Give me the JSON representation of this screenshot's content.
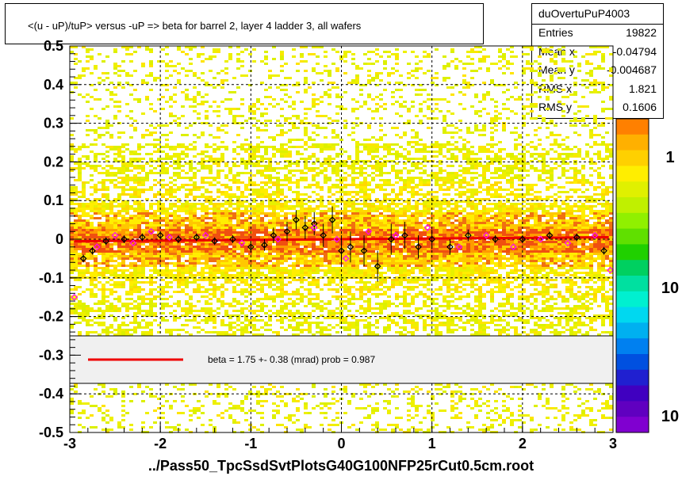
{
  "title": "<(u - uP)/tuP>  versus  -uP => beta for barrel 2, layer 4 ladder 3, all wafers",
  "stats": {
    "name": "duOvertuPuP4003",
    "rows": [
      {
        "label": "Entries",
        "value": "19822"
      },
      {
        "label": "Mean x",
        "value": "-0.04794"
      },
      {
        "label": "Mean y",
        "value": "-0.004687"
      },
      {
        "label": "RMS x",
        "value": "1.821"
      },
      {
        "label": "RMS y",
        "value": "0.1606"
      }
    ]
  },
  "fit_legend": "beta =    1.75 +-  0.38 (mrad) prob = 0.987",
  "footer": "../Pass50_TpcSsdSvtPlotsG40G100NFP25rCut0.5cm.root",
  "colors": {
    "fit_line": "#ee0000",
    "profile_black": "#000000",
    "profile_magenta": "#ff00ff"
  },
  "chart_data": {
    "type": "heatmap",
    "title": "<(u - uP)/tuP>  versus  -uP => beta for barrel 2, layer 4 ladder 3, all wafers",
    "xlim": [
      -3,
      3
    ],
    "ylim": [
      -0.5,
      0.5
    ],
    "x_ticks": [
      -3,
      -2,
      -1,
      0,
      1,
      2,
      3
    ],
    "x_tick_labels": [
      "-3",
      "-2",
      "-1",
      "0",
      "1",
      "2",
      "3"
    ],
    "y_ticks": [
      -0.5,
      -0.4,
      -0.3,
      -0.2,
      -0.1,
      0,
      0.1,
      0.2,
      0.3,
      0.4,
      0.5
    ],
    "y_tick_labels": [
      "-0.5",
      "-0.4",
      "-0.3",
      "-0.2",
      "-0.1",
      "0",
      "0.1",
      "0.2",
      "0.3",
      "0.4",
      "0.5"
    ],
    "grid": true,
    "colorbar_labels": [
      "1",
      "10",
      "10"
    ],
    "fit": {
      "slope_mrad": 1.75,
      "slope_err_mrad": 0.38,
      "prob": 0.987,
      "intercept": 0.0
    },
    "profile_black": [
      {
        "x": -2.85,
        "y": -0.05,
        "e": 0.01
      },
      {
        "x": -2.75,
        "y": -0.03,
        "e": 0.01
      },
      {
        "x": -2.6,
        "y": -0.005,
        "e": 0.01
      },
      {
        "x": -2.4,
        "y": 0.0,
        "e": 0.01
      },
      {
        "x": -2.2,
        "y": 0.005,
        "e": 0.01
      },
      {
        "x": -2.0,
        "y": 0.01,
        "e": 0.01
      },
      {
        "x": -1.8,
        "y": 0.0,
        "e": 0.01
      },
      {
        "x": -1.6,
        "y": 0.005,
        "e": 0.01
      },
      {
        "x": -1.4,
        "y": -0.005,
        "e": 0.01
      },
      {
        "x": -1.2,
        "y": 0.0,
        "e": 0.01
      },
      {
        "x": -1.0,
        "y": -0.02,
        "e": 0.015
      },
      {
        "x": -0.85,
        "y": -0.015,
        "e": 0.015
      },
      {
        "x": -0.75,
        "y": 0.01,
        "e": 0.02
      },
      {
        "x": -0.6,
        "y": 0.02,
        "e": 0.025
      },
      {
        "x": -0.5,
        "y": 0.05,
        "e": 0.025
      },
      {
        "x": -0.4,
        "y": 0.03,
        "e": 0.03
      },
      {
        "x": -0.3,
        "y": 0.04,
        "e": 0.03
      },
      {
        "x": -0.2,
        "y": 0.01,
        "e": 0.03
      },
      {
        "x": -0.1,
        "y": 0.05,
        "e": 0.035
      },
      {
        "x": 0.0,
        "y": -0.03,
        "e": 0.04
      },
      {
        "x": 0.1,
        "y": -0.02,
        "e": 0.04
      },
      {
        "x": 0.25,
        "y": -0.03,
        "e": 0.04
      },
      {
        "x": 0.4,
        "y": -0.07,
        "e": 0.04
      },
      {
        "x": 0.55,
        "y": 0.0,
        "e": 0.04
      },
      {
        "x": 0.7,
        "y": 0.01,
        "e": 0.035
      },
      {
        "x": 0.85,
        "y": -0.02,
        "e": 0.03
      },
      {
        "x": 1.0,
        "y": 0.0,
        "e": 0.025
      },
      {
        "x": 1.2,
        "y": -0.02,
        "e": 0.02
      },
      {
        "x": 1.4,
        "y": 0.01,
        "e": 0.015
      },
      {
        "x": 1.7,
        "y": 0.0,
        "e": 0.01
      },
      {
        "x": 2.0,
        "y": 0.0,
        "e": 0.01
      },
      {
        "x": 2.3,
        "y": 0.01,
        "e": 0.01
      },
      {
        "x": 2.6,
        "y": 0.005,
        "e": 0.01
      },
      {
        "x": 2.9,
        "y": -0.03,
        "e": 0.01
      }
    ],
    "profile_magenta": [
      {
        "x": -2.95,
        "y": -0.15
      },
      {
        "x": -2.7,
        "y": -0.02
      },
      {
        "x": -2.5,
        "y": 0.01
      },
      {
        "x": -2.3,
        "y": -0.01
      },
      {
        "x": -2.1,
        "y": 0.02
      },
      {
        "x": -1.9,
        "y": 0.005
      },
      {
        "x": -1.5,
        "y": 0.01
      },
      {
        "x": -1.1,
        "y": -0.01
      },
      {
        "x": -0.7,
        "y": 0.0
      },
      {
        "x": -0.3,
        "y": 0.03
      },
      {
        "x": -0.05,
        "y": 0.0
      },
      {
        "x": 0.05,
        "y": -0.05
      },
      {
        "x": 0.3,
        "y": 0.02
      },
      {
        "x": 0.6,
        "y": 0.01
      },
      {
        "x": 0.95,
        "y": 0.03
      },
      {
        "x": 1.3,
        "y": -0.02
      },
      {
        "x": 1.6,
        "y": 0.01
      },
      {
        "x": 1.9,
        "y": -0.02
      },
      {
        "x": 2.2,
        "y": 0.0
      },
      {
        "x": 2.5,
        "y": -0.01
      },
      {
        "x": 2.8,
        "y": 0.01
      },
      {
        "x": 2.97,
        "y": -0.08
      }
    ]
  }
}
